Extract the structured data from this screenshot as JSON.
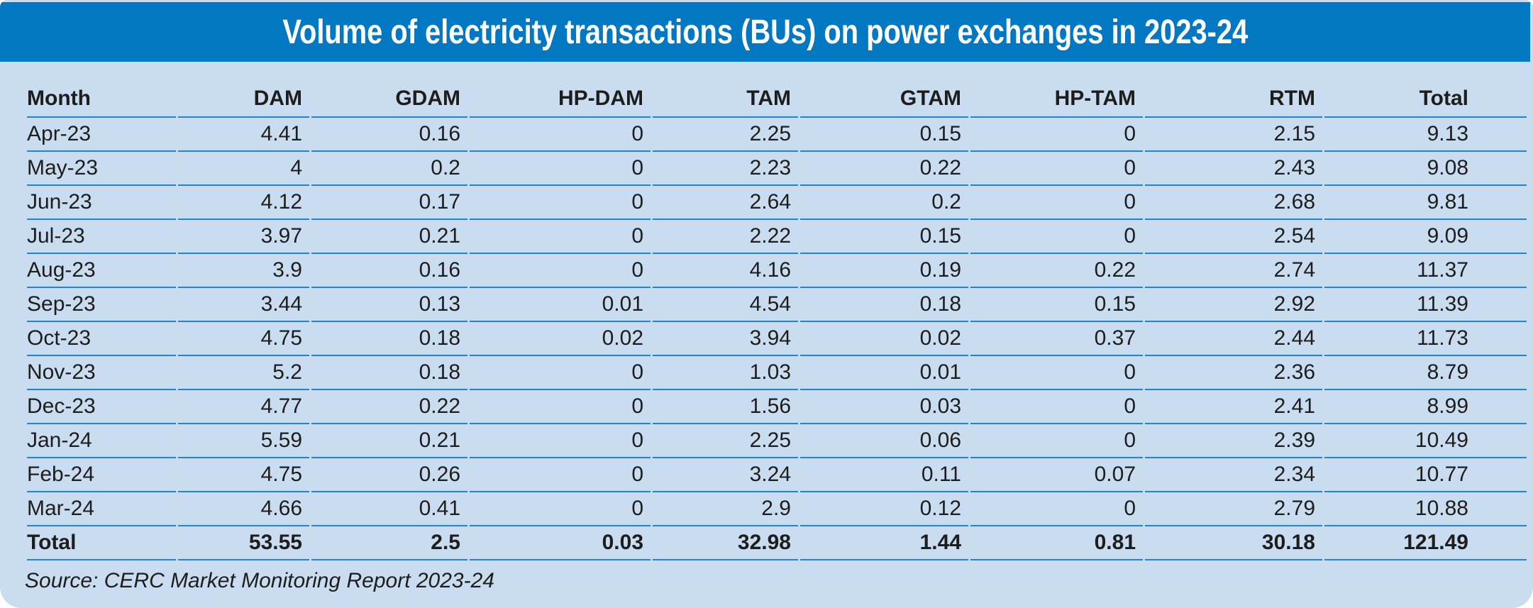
{
  "title": "Volume of electricity transactions (BUs) on power exchanges in 2023-24",
  "source_note": "Source: CERC Market Monitoring Report 2023-24",
  "colors": {
    "title_bar_bg": "#0277c2",
    "panel_bg": "#c9dcf0",
    "rule_line": "#1e88cb",
    "text": "#1d1d1b",
    "title_text": "#ffffff"
  },
  "chart_data": {
    "type": "table",
    "title": "Volume of electricity transactions (BUs) on power exchanges in 2023-24",
    "unit": "BUs (billion units)",
    "columns": [
      "Month",
      "DAM",
      "GDAM",
      "HP-DAM",
      "TAM",
      "GTAM",
      "HP-TAM",
      "RTM",
      "Total"
    ],
    "rows": [
      [
        "Apr-23",
        "4.41",
        "0.16",
        "0",
        "2.25",
        "0.15",
        "0",
        "2.15",
        "9.13"
      ],
      [
        "May-23",
        "4",
        "0.2",
        "0",
        "2.23",
        "0.22",
        "0",
        "2.43",
        "9.08"
      ],
      [
        "Jun-23",
        "4.12",
        "0.17",
        "0",
        "2.64",
        "0.2",
        "0",
        "2.68",
        "9.81"
      ],
      [
        "Jul-23",
        "3.97",
        "0.21",
        "0",
        "2.22",
        "0.15",
        "0",
        "2.54",
        "9.09"
      ],
      [
        "Aug-23",
        "3.9",
        "0.16",
        "0",
        "4.16",
        "0.19",
        "0.22",
        "2.74",
        "11.37"
      ],
      [
        "Sep-23",
        "3.44",
        "0.13",
        "0.01",
        "4.54",
        "0.18",
        "0.15",
        "2.92",
        "11.39"
      ],
      [
        "Oct-23",
        "4.75",
        "0.18",
        "0.02",
        "3.94",
        "0.02",
        "0.37",
        "2.44",
        "11.73"
      ],
      [
        "Nov-23",
        "5.2",
        "0.18",
        "0",
        "1.03",
        "0.01",
        "0",
        "2.36",
        "8.79"
      ],
      [
        "Dec-23",
        "4.77",
        "0.22",
        "0",
        "1.56",
        "0.03",
        "0",
        "2.41",
        "8.99"
      ],
      [
        "Jan-24",
        "5.59",
        "0.21",
        "0",
        "2.25",
        "0.06",
        "0",
        "2.39",
        "10.49"
      ],
      [
        "Feb-24",
        "4.75",
        "0.26",
        "0",
        "3.24",
        "0.11",
        "0.07",
        "2.34",
        "10.77"
      ],
      [
        "Mar-24",
        "4.66",
        "0.41",
        "0",
        "2.9",
        "0.12",
        "0",
        "2.79",
        "10.88"
      ]
    ],
    "total_row": [
      "Total",
      "53.55",
      "2.5",
      "0.03",
      "32.98",
      "1.44",
      "0.81",
      "30.18",
      "121.49"
    ],
    "layout": {
      "month_column_align": "left",
      "value_columns_align": "right",
      "grid": "horizontal-rules-only",
      "header_style": "bold",
      "total_row_style": "bold"
    }
  }
}
